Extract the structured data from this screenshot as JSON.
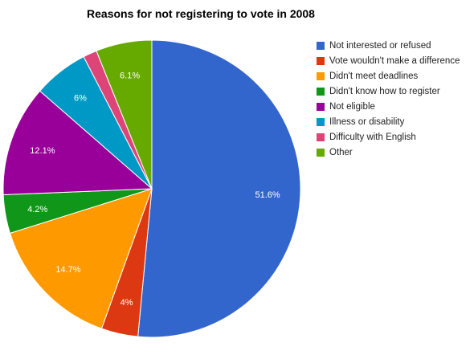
{
  "chart_data": {
    "type": "pie",
    "title": "Reasons for not registering to vote in 2008",
    "legend_position": "right",
    "start_angle_deg": 0,
    "direction": "clockwise",
    "slices": [
      {
        "label": "Not interested or refused",
        "value": 51.6,
        "display": "51.6%",
        "color": "#3366cc"
      },
      {
        "label": "Vote wouldn't make a difference",
        "value": 4.0,
        "display": "4%",
        "color": "#dc3912"
      },
      {
        "label": "Didn't meet deadlines",
        "value": 14.7,
        "display": "14.7%",
        "color": "#ff9900"
      },
      {
        "label": "Didn't know how to register",
        "value": 4.2,
        "display": "4.2%",
        "color": "#109618"
      },
      {
        "label": "Not eligible",
        "value": 12.1,
        "display": "12.1%",
        "color": "#990099"
      },
      {
        "label": "Illness or disability",
        "value": 6.0,
        "display": "6%",
        "color": "#0099c6"
      },
      {
        "label": "Difficulty with English",
        "value": 1.5,
        "display": "",
        "color": "#dd4477"
      },
      {
        "label": "Other",
        "value": 6.1,
        "display": "6.1%",
        "color": "#66aa00"
      }
    ]
  }
}
